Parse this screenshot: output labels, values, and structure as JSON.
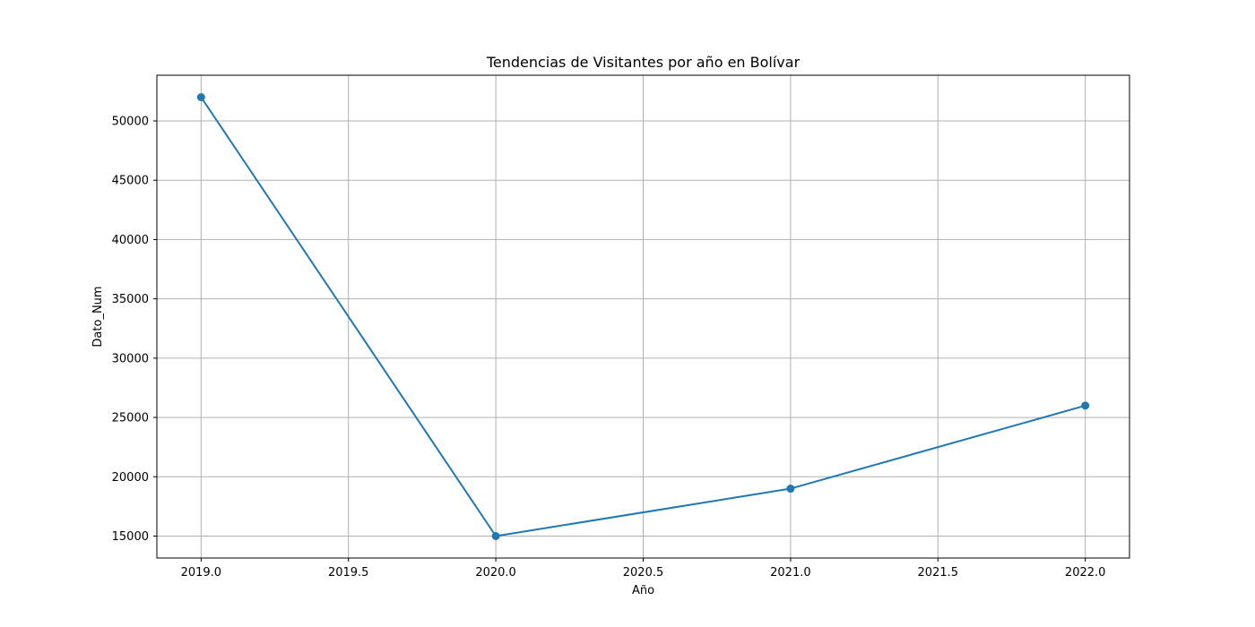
{
  "chart_data": {
    "type": "line",
    "title": "Tendencias de Visitantes por año en Bolívar",
    "xlabel": "Año",
    "ylabel": "Dato_Num",
    "x": [
      2019,
      2020,
      2021,
      2022
    ],
    "series": [
      {
        "values": [
          52000,
          15000,
          19000,
          26000
        ]
      }
    ],
    "xlim": [
      2018.85,
      2022.15
    ],
    "ylim": [
      13150,
      53850
    ],
    "xticks": [
      2019.0,
      2019.5,
      2020.0,
      2020.5,
      2021.0,
      2021.5,
      2022.0
    ],
    "xtick_labels": [
      "2019.0",
      "2019.5",
      "2020.0",
      "2020.5",
      "2021.0",
      "2021.5",
      "2022.0"
    ],
    "yticks": [
      15000,
      20000,
      25000,
      30000,
      35000,
      40000,
      45000,
      50000
    ],
    "ytick_labels": [
      "15000",
      "20000",
      "25000",
      "30000",
      "35000",
      "40000",
      "45000",
      "50000"
    ],
    "grid": true,
    "marker": "circle",
    "line_color": "#1f77b4"
  }
}
